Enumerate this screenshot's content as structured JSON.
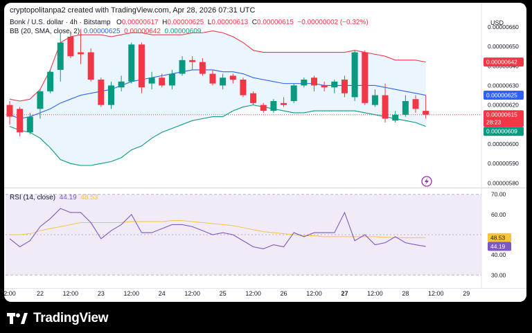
{
  "caption": "cryptopolitanpa2 created with TradingView.com, Apr 28, 2026 07:31 UTC",
  "legend": {
    "symbol": "Bonk / U.S. dollar · 4h · Bitstamp",
    "o_label": "O",
    "o_value": "0.00000617",
    "h_label": "H",
    "h_value": "0.00000625",
    "l_label": "L",
    "l_value": "0.00000613",
    "c_label": "C",
    "c_value": "0.00000615",
    "change": "−0.00000002 (−0.32%)"
  },
  "bb_legend": {
    "label": "BB (20, SMA, close, 2)",
    "basis": "0.00000625",
    "upper": "0.00000642",
    "lower": "0.00000609"
  },
  "rsi_legend": {
    "label": "RSI (14, close)",
    "rsi": "44.19",
    "ma": "48.53"
  },
  "footer": {
    "brand": "TradingView"
  },
  "colors": {
    "up": "#089981",
    "down": "#f23645",
    "basis": "#2962ff",
    "upper": "#f23645",
    "lower": "#089981",
    "band_fill": "#e3f2fd",
    "rsi": "#7e57c2",
    "rsi_ma": "#f7c43a",
    "rsi_fill": "#ede7f6"
  },
  "chart_data": [
    {
      "type": "candlestick",
      "currency": "USD",
      "ylim": [
        5.78e-06,
        6.66e-06
      ],
      "y_ticks": [
        "0.00000660",
        "0.00000650",
        "0.00000640",
        "0.00000630",
        "0.00000620",
        "0.00000610",
        "0.00000600",
        "0.00000590",
        "0.00000580"
      ],
      "x_ticks": [
        "2:00",
        "22",
        "12:00",
        "23",
        "12:00",
        "24",
        "12:00",
        "25",
        "12:00",
        "26",
        "12:00",
        "27",
        "12:00",
        "28",
        "12:00",
        "29"
      ],
      "x_tick_bars": [
        0,
        3,
        6,
        9,
        12,
        15,
        18,
        21,
        24,
        27,
        30,
        33,
        36,
        39,
        42,
        45
      ],
      "candles": [
        {
          "o": 6.2e-06,
          "h": 6.22e-06,
          "l": 6.1e-06,
          "c": 6.14e-06
        },
        {
          "o": 6.18e-06,
          "h": 6.19e-06,
          "l": 6.04e-06,
          "c": 6.06e-06
        },
        {
          "o": 6.06e-06,
          "h": 6.16e-06,
          "l": 6.05e-06,
          "c": 6.14e-06
        },
        {
          "o": 6.18e-06,
          "h": 6.28e-06,
          "l": 6.13e-06,
          "c": 6.27e-06
        },
        {
          "o": 6.27e-06,
          "h": 6.38e-06,
          "l": 6.26e-06,
          "c": 6.37e-06
        },
        {
          "o": 6.38e-06,
          "h": 6.57e-06,
          "l": 6.32e-06,
          "c": 6.52e-06
        },
        {
          "o": 6.55e-06,
          "h": 6.58e-06,
          "l": 6.44e-06,
          "c": 6.45e-06
        },
        {
          "o": 6.47e-06,
          "h": 6.59e-06,
          "l": 6.41e-06,
          "c": 6.46e-06
        },
        {
          "o": 6.47e-06,
          "h": 6.49e-06,
          "l": 6.32e-06,
          "c": 6.33e-06
        },
        {
          "o": 6.33e-06,
          "h": 6.34e-06,
          "l": 6.19e-06,
          "c": 6.2e-06
        },
        {
          "o": 6.2e-06,
          "h": 6.32e-06,
          "l": 6.18e-06,
          "c": 6.3e-06
        },
        {
          "o": 6.29e-06,
          "h": 6.35e-06,
          "l": 6.27e-06,
          "c": 6.32e-06
        },
        {
          "o": 6.32e-06,
          "h": 6.52e-06,
          "l": 6.31e-06,
          "c": 6.51e-06
        },
        {
          "o": 6.51e-06,
          "h": 6.52e-06,
          "l": 6.26e-06,
          "c": 6.29e-06
        },
        {
          "o": 6.31e-06,
          "h": 6.37e-06,
          "l": 6.28e-06,
          "c": 6.34e-06
        },
        {
          "o": 6.34e-06,
          "h": 6.36e-06,
          "l": 6.29e-06,
          "c": 6.3e-06
        },
        {
          "o": 6.3e-06,
          "h": 6.38e-06,
          "l": 6.28e-06,
          "c": 6.36e-06
        },
        {
          "o": 6.36e-06,
          "h": 6.45e-06,
          "l": 6.35e-06,
          "c": 6.43e-06
        },
        {
          "o": 6.43e-06,
          "h": 6.45e-06,
          "l": 6.38e-06,
          "c": 6.42e-06
        },
        {
          "o": 6.42e-06,
          "h": 6.44e-06,
          "l": 6.35e-06,
          "c": 6.36e-06
        },
        {
          "o": 6.36e-06,
          "h": 6.38e-06,
          "l": 6.3e-06,
          "c": 6.31e-06
        },
        {
          "o": 6.3e-06,
          "h": 6.36e-06,
          "l": 6.28e-06,
          "c": 6.34e-06
        },
        {
          "o": 6.35e-06,
          "h": 6.36e-06,
          "l": 6.31e-06,
          "c": 6.33e-06
        },
        {
          "o": 6.33e-06,
          "h": 6.34e-06,
          "l": 6.24e-06,
          "c": 6.25e-06
        },
        {
          "o": 6.26e-06,
          "h": 6.27e-06,
          "l": 6.2e-06,
          "c": 6.21e-06
        },
        {
          "o": 6.2e-06,
          "h": 6.21e-06,
          "l": 6.16e-06,
          "c": 6.17e-06
        },
        {
          "o": 6.17e-06,
          "h": 6.23e-06,
          "l": 6.16e-06,
          "c": 6.22e-06
        },
        {
          "o": 6.21e-06,
          "h": 6.24e-06,
          "l": 6.19e-06,
          "c": 6.2e-06
        },
        {
          "o": 6.22e-06,
          "h": 6.31e-06,
          "l": 6.21e-06,
          "c": 6.3e-06
        },
        {
          "o": 6.3e-06,
          "h": 6.34e-06,
          "l": 6.29e-06,
          "c": 6.33e-06
        },
        {
          "o": 6.34e-06,
          "h": 6.35e-06,
          "l": 6.27e-06,
          "c": 6.3e-06
        },
        {
          "o": 6.3e-06,
          "h": 6.32e-06,
          "l": 6.27e-06,
          "c": 6.29e-06
        },
        {
          "o": 6.29e-06,
          "h": 6.33e-06,
          "l": 6.26e-06,
          "c": 6.32e-06
        },
        {
          "o": 6.33e-06,
          "h": 6.35e-06,
          "l": 6.24e-06,
          "c": 6.26e-06
        },
        {
          "o": 6.24e-06,
          "h": 6.48e-06,
          "l": 6.22e-06,
          "c": 6.47e-06
        },
        {
          "o": 6.47e-06,
          "h": 6.48e-06,
          "l": 6.2e-06,
          "c": 6.21e-06
        },
        {
          "o": 6.2e-06,
          "h": 6.28e-06,
          "l": 6.19e-06,
          "c": 6.25e-06
        },
        {
          "o": 6.25e-06,
          "h": 6.31e-06,
          "l": 6.11e-06,
          "c": 6.13e-06
        },
        {
          "o": 6.12e-06,
          "h": 6.17e-06,
          "l": 6.11e-06,
          "c": 6.15e-06
        },
        {
          "o": 6.15e-06,
          "h": 6.25e-06,
          "l": 6.14e-06,
          "c": 6.22e-06
        },
        {
          "o": 6.23e-06,
          "h": 6.25e-06,
          "l": 6.16e-06,
          "c": 6.18e-06
        },
        {
          "o": 6.17e-06,
          "h": 6.25e-06,
          "l": 6.13e-06,
          "c": 6.15e-06
        }
      ],
      "bollinger": {
        "upper": [
          6.23e-06,
          6.22e-06,
          6.23e-06,
          6.28e-06,
          6.38e-06,
          6.52e-06,
          6.55e-06,
          6.56e-06,
          6.56e-06,
          6.56e-06,
          6.55e-06,
          6.56e-06,
          6.57e-06,
          6.57e-06,
          6.56e-06,
          6.56e-06,
          6.56e-06,
          6.56e-06,
          6.57e-06,
          6.57e-06,
          6.58e-06,
          6.57e-06,
          6.55e-06,
          6.52e-06,
          6.48e-06,
          6.47e-06,
          6.47e-06,
          6.47e-06,
          6.47e-06,
          6.47e-06,
          6.47e-06,
          6.47e-06,
          6.47e-06,
          6.47e-06,
          6.48e-06,
          6.47e-06,
          6.46e-06,
          6.45e-06,
          6.43e-06,
          6.43e-06,
          6.43e-06,
          6.42e-06
        ],
        "basis": [
          6.15e-06,
          6.13e-06,
          6.14e-06,
          6.16e-06,
          6.18e-06,
          6.21e-06,
          6.23e-06,
          6.25e-06,
          6.26e-06,
          6.27e-06,
          6.28e-06,
          6.3e-06,
          6.32e-06,
          6.33e-06,
          6.34e-06,
          6.35e-06,
          6.36e-06,
          6.37e-06,
          6.38e-06,
          6.38e-06,
          6.38e-06,
          6.37e-06,
          6.37e-06,
          6.36e-06,
          6.34e-06,
          6.33e-06,
          6.32e-06,
          6.31e-06,
          6.31e-06,
          6.31e-06,
          6.31e-06,
          6.3e-06,
          6.3e-06,
          6.3e-06,
          6.3e-06,
          6.3e-06,
          6.3e-06,
          6.29e-06,
          6.28e-06,
          6.27e-06,
          6.26e-06,
          6.25e-06
        ],
        "lower": [
          6.09e-06,
          6.07e-06,
          6.06e-06,
          6.03e-06,
          5.98e-06,
          5.92e-06,
          5.9e-06,
          5.89e-06,
          5.89e-06,
          5.9e-06,
          5.91e-06,
          5.93e-06,
          5.97e-06,
          5.99e-06,
          6.03e-06,
          6.06e-06,
          6.08e-06,
          6.1e-06,
          6.12e-06,
          6.13e-06,
          6.14e-06,
          6.14e-06,
          6.17e-06,
          6.19e-06,
          6.2e-06,
          6.19e-06,
          6.18e-06,
          6.17e-06,
          6.16e-06,
          6.16e-06,
          6.17e-06,
          6.17e-06,
          6.17e-06,
          6.17e-06,
          6.17e-06,
          6.16e-06,
          6.15e-06,
          6.14e-06,
          6.13e-06,
          6.12e-06,
          6.11e-06,
          6.09e-06
        ]
      },
      "last_price_labels": {
        "upper": "0.00000642",
        "basis": "0.00000625",
        "close": "0.00000615",
        "countdown": "28:23",
        "lower": "0.00000609"
      }
    },
    {
      "type": "line",
      "title": "RSI (14, close)",
      "ylim": [
        27,
        73
      ],
      "y_ticks": [
        "70.00",
        "60.00",
        "40.00",
        "30.00"
      ],
      "band": [
        30,
        70
      ],
      "midline": 50,
      "series": [
        {
          "name": "RSI",
          "values": [
            48,
            44,
            47,
            54,
            58,
            63,
            61,
            61,
            56,
            48,
            52,
            55,
            60,
            51,
            51,
            53,
            55,
            55,
            54,
            52,
            50,
            51,
            50,
            47,
            44,
            43,
            45,
            44,
            51,
            49,
            51,
            51,
            51,
            61,
            47,
            50,
            45,
            46,
            49,
            46,
            45,
            44.19
          ]
        },
        {
          "name": "MA",
          "values": [
            50,
            50,
            50.5,
            52,
            53,
            54,
            55,
            56,
            56,
            56,
            56,
            56,
            56.5,
            56.5,
            56.5,
            56.5,
            57,
            57,
            56.5,
            56,
            55.5,
            55,
            54.5,
            53.5,
            52.5,
            51.5,
            51,
            50.5,
            50,
            49.5,
            49.5,
            49,
            49,
            49,
            49,
            49,
            49,
            48.7,
            48.6,
            48.5,
            48.5,
            48.53
          ]
        }
      ],
      "last_value_labels": {
        "ma": "48.53",
        "rsi": "44.19"
      }
    }
  ]
}
